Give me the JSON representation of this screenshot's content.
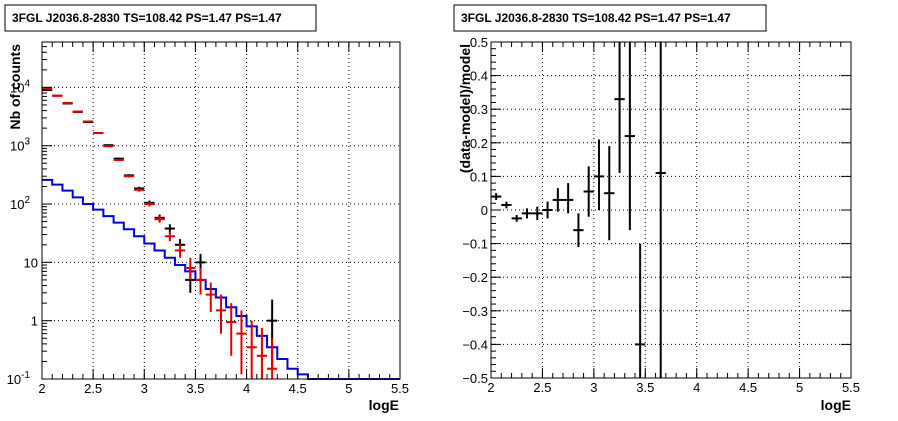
{
  "chart_data": [
    {
      "type": "line",
      "title": "3FGL J2036.8-2830 TS=108.42 PS=1.47 PS=1.47",
      "xlabel": "logE",
      "ylabel": "Nb of counts",
      "xlim": [
        2,
        5.5
      ],
      "ylim": [
        0.1,
        60000
      ],
      "yscale": "log",
      "grid": true,
      "x_ticks": [
        "2",
        "2.5",
        "3",
        "3.5",
        "4",
        "4.5",
        "5",
        "5.5"
      ],
      "y_ticks": [
        {
          "value": 0.1,
          "label": "10",
          "sup": "-1"
        },
        {
          "value": 1,
          "label": "1",
          "sup": ""
        },
        {
          "value": 10,
          "label": "10",
          "sup": ""
        },
        {
          "value": 100,
          "label": "10",
          "sup": "2"
        },
        {
          "value": 1000,
          "label": "10",
          "sup": "3"
        },
        {
          "value": 10000,
          "label": "10",
          "sup": "4"
        }
      ],
      "colors": {
        "data": "#000000",
        "model": "#e00000",
        "background": "#0000dd"
      },
      "series": [
        {
          "style": "histogram",
          "color": "#0000dd",
          "bin_edges": [
            2.0,
            2.1,
            2.2,
            2.3,
            2.4,
            2.5,
            2.6,
            2.7,
            2.8,
            2.9,
            3.0,
            3.1,
            3.2,
            3.3,
            3.4,
            3.5,
            3.6,
            3.7,
            3.8,
            3.9,
            4.0,
            4.1,
            4.2,
            4.3,
            4.4,
            4.5,
            4.6,
            4.7,
            4.8,
            4.9,
            5.0,
            5.1,
            5.2,
            5.3,
            5.4,
            5.5
          ],
          "values": [
            260,
            215,
            170,
            130,
            100,
            80,
            62,
            48,
            37,
            28,
            21,
            16,
            12,
            9,
            7,
            5,
            3.5,
            2.5,
            1.7,
            1.2,
            0.8,
            0.55,
            0.35,
            0.22,
            0.15,
            0.12,
            0.1,
            0.1,
            0.1,
            0.1,
            0.1,
            0.1,
            0.1,
            0.1,
            0.1
          ]
        },
        {
          "style": "errorbar",
          "color": "#000000",
          "points": [
            {
              "x": 2.05,
              "y": 9000,
              "lo": 8800,
              "hi": 9200
            },
            {
              "x": 2.15,
              "y": 7200,
              "lo": 7050,
              "hi": 7350
            },
            {
              "x": 2.25,
              "y": 5300,
              "lo": 5150,
              "hi": 5450
            },
            {
              "x": 2.35,
              "y": 3800,
              "lo": 3700,
              "hi": 3900
            },
            {
              "x": 2.45,
              "y": 2550,
              "lo": 2480,
              "hi": 2620
            },
            {
              "x": 2.55,
              "y": 1650,
              "lo": 1600,
              "hi": 1700
            },
            {
              "x": 2.65,
              "y": 1020,
              "lo": 985,
              "hi": 1055
            },
            {
              "x": 2.75,
              "y": 600,
              "lo": 575,
              "hi": 625
            },
            {
              "x": 2.85,
              "y": 310,
              "lo": 295,
              "hi": 325
            },
            {
              "x": 2.95,
              "y": 185,
              "lo": 172,
              "hi": 198
            },
            {
              "x": 3.05,
              "y": 105,
              "lo": 95,
              "hi": 115
            },
            {
              "x": 3.15,
              "y": 58,
              "lo": 50,
              "hi": 66
            },
            {
              "x": 3.25,
              "y": 38,
              "lo": 31,
              "hi": 45
            },
            {
              "x": 3.35,
              "y": 20,
              "lo": 15,
              "hi": 25
            },
            {
              "x": 3.45,
              "y": 5,
              "lo": 3,
              "hi": 8
            },
            {
              "x": 3.55,
              "y": 10,
              "lo": 6.5,
              "hi": 14
            },
            {
              "x": 4.25,
              "y": 1,
              "lo": 0.15,
              "hi": 2.3
            }
          ]
        },
        {
          "style": "errorbar",
          "color": "#e00000",
          "points": [
            {
              "x": 2.05,
              "y": 9500,
              "lo": 9300,
              "hi": 9700
            },
            {
              "x": 2.15,
              "y": 7200,
              "lo": 7050,
              "hi": 7350
            },
            {
              "x": 2.25,
              "y": 5400,
              "lo": 5250,
              "hi": 5550
            },
            {
              "x": 2.35,
              "y": 3850,
              "lo": 3750,
              "hi": 3950
            },
            {
              "x": 2.45,
              "y": 2600,
              "lo": 2530,
              "hi": 2670
            },
            {
              "x": 2.55,
              "y": 1650,
              "lo": 1600,
              "hi": 1700
            },
            {
              "x": 2.65,
              "y": 980,
              "lo": 950,
              "hi": 1010
            },
            {
              "x": 2.75,
              "y": 570,
              "lo": 550,
              "hi": 590
            },
            {
              "x": 2.85,
              "y": 300,
              "lo": 285,
              "hi": 315
            },
            {
              "x": 2.95,
              "y": 175,
              "lo": 163,
              "hi": 187
            },
            {
              "x": 3.05,
              "y": 100,
              "lo": 91,
              "hi": 110
            },
            {
              "x": 3.15,
              "y": 55,
              "lo": 48,
              "hi": 62
            },
            {
              "x": 3.25,
              "y": 28,
              "lo": 23,
              "hi": 34
            },
            {
              "x": 3.35,
              "y": 16,
              "lo": 12,
              "hi": 21
            },
            {
              "x": 3.45,
              "y": 8,
              "lo": 5,
              "hi": 12
            },
            {
              "x": 3.55,
              "y": 5,
              "lo": 2.8,
              "hi": 8
            },
            {
              "x": 3.65,
              "y": 2.8,
              "lo": 1.4,
              "hi": 4.5
            },
            {
              "x": 3.75,
              "y": 1.5,
              "lo": 0.6,
              "hi": 2.8
            },
            {
              "x": 3.85,
              "y": 0.95,
              "lo": 0.25,
              "hi": 2
            },
            {
              "x": 3.95,
              "y": 0.6,
              "lo": 0.12,
              "hi": 1.5
            },
            {
              "x": 4.05,
              "y": 0.35,
              "lo": 0.1,
              "hi": 1
            },
            {
              "x": 4.15,
              "y": 0.25,
              "lo": 0.1,
              "hi": 0.75
            },
            {
              "x": 4.25,
              "y": 0.15,
              "lo": 0.1,
              "hi": 0.5
            }
          ]
        }
      ]
    },
    {
      "type": "scatter",
      "title": "3FGL J2036.8-2830 TS=108.42 PS=1.47 PS=1.47",
      "xlabel": "logE",
      "ylabel": "(data-model)/model",
      "xlim": [
        2,
        5.5
      ],
      "ylim": [
        -0.5,
        0.5
      ],
      "grid": true,
      "x_ticks": [
        "2",
        "2.5",
        "3",
        "3.5",
        "4",
        "4.5",
        "5",
        "5.5"
      ],
      "y_ticks": [
        "−0.5",
        "−0.4",
        "−0.3",
        "−0.2",
        "−0.1",
        "0",
        "0.1",
        "0.2",
        "0.3",
        "0.4",
        "0.5"
      ],
      "y_tick_values": [
        -0.5,
        -0.4,
        -0.3,
        -0.2,
        -0.1,
        0,
        0.1,
        0.2,
        0.3,
        0.4,
        0.5
      ],
      "series": [
        {
          "style": "errorbar",
          "color": "#000000",
          "points": [
            {
              "x": 2.05,
              "y": 0.04,
              "lo": 0.03,
              "hi": 0.05
            },
            {
              "x": 2.15,
              "y": 0.015,
              "lo": 0.005,
              "hi": 0.025
            },
            {
              "x": 2.25,
              "y": -0.025,
              "lo": -0.035,
              "hi": -0.015
            },
            {
              "x": 2.35,
              "y": -0.01,
              "lo": -0.025,
              "hi": 0.005
            },
            {
              "x": 2.45,
              "y": -0.01,
              "lo": -0.03,
              "hi": 0.01
            },
            {
              "x": 2.55,
              "y": 0,
              "lo": -0.025,
              "hi": 0.025
            },
            {
              "x": 2.65,
              "y": 0.03,
              "lo": -0.005,
              "hi": 0.065
            },
            {
              "x": 2.75,
              "y": 0.03,
              "lo": -0.01,
              "hi": 0.08
            },
            {
              "x": 2.85,
              "y": -0.06,
              "lo": -0.11,
              "hi": -0.01
            },
            {
              "x": 2.95,
              "y": 0.055,
              "lo": -0.02,
              "hi": 0.13
            },
            {
              "x": 3.05,
              "y": 0.1,
              "lo": 0,
              "hi": 0.21
            },
            {
              "x": 3.15,
              "y": 0.05,
              "lo": -0.09,
              "hi": 0.19
            },
            {
              "x": 3.25,
              "y": 0.33,
              "lo": 0.11,
              "hi": 0.5
            },
            {
              "x": 3.35,
              "y": 0.22,
              "lo": -0.06,
              "hi": 0.5
            },
            {
              "x": 3.45,
              "y": -0.4,
              "lo": -0.5,
              "hi": -0.1
            },
            {
              "x": 3.65,
              "y": 0.11,
              "lo": -0.5,
              "hi": 0.5
            }
          ]
        }
      ]
    }
  ]
}
